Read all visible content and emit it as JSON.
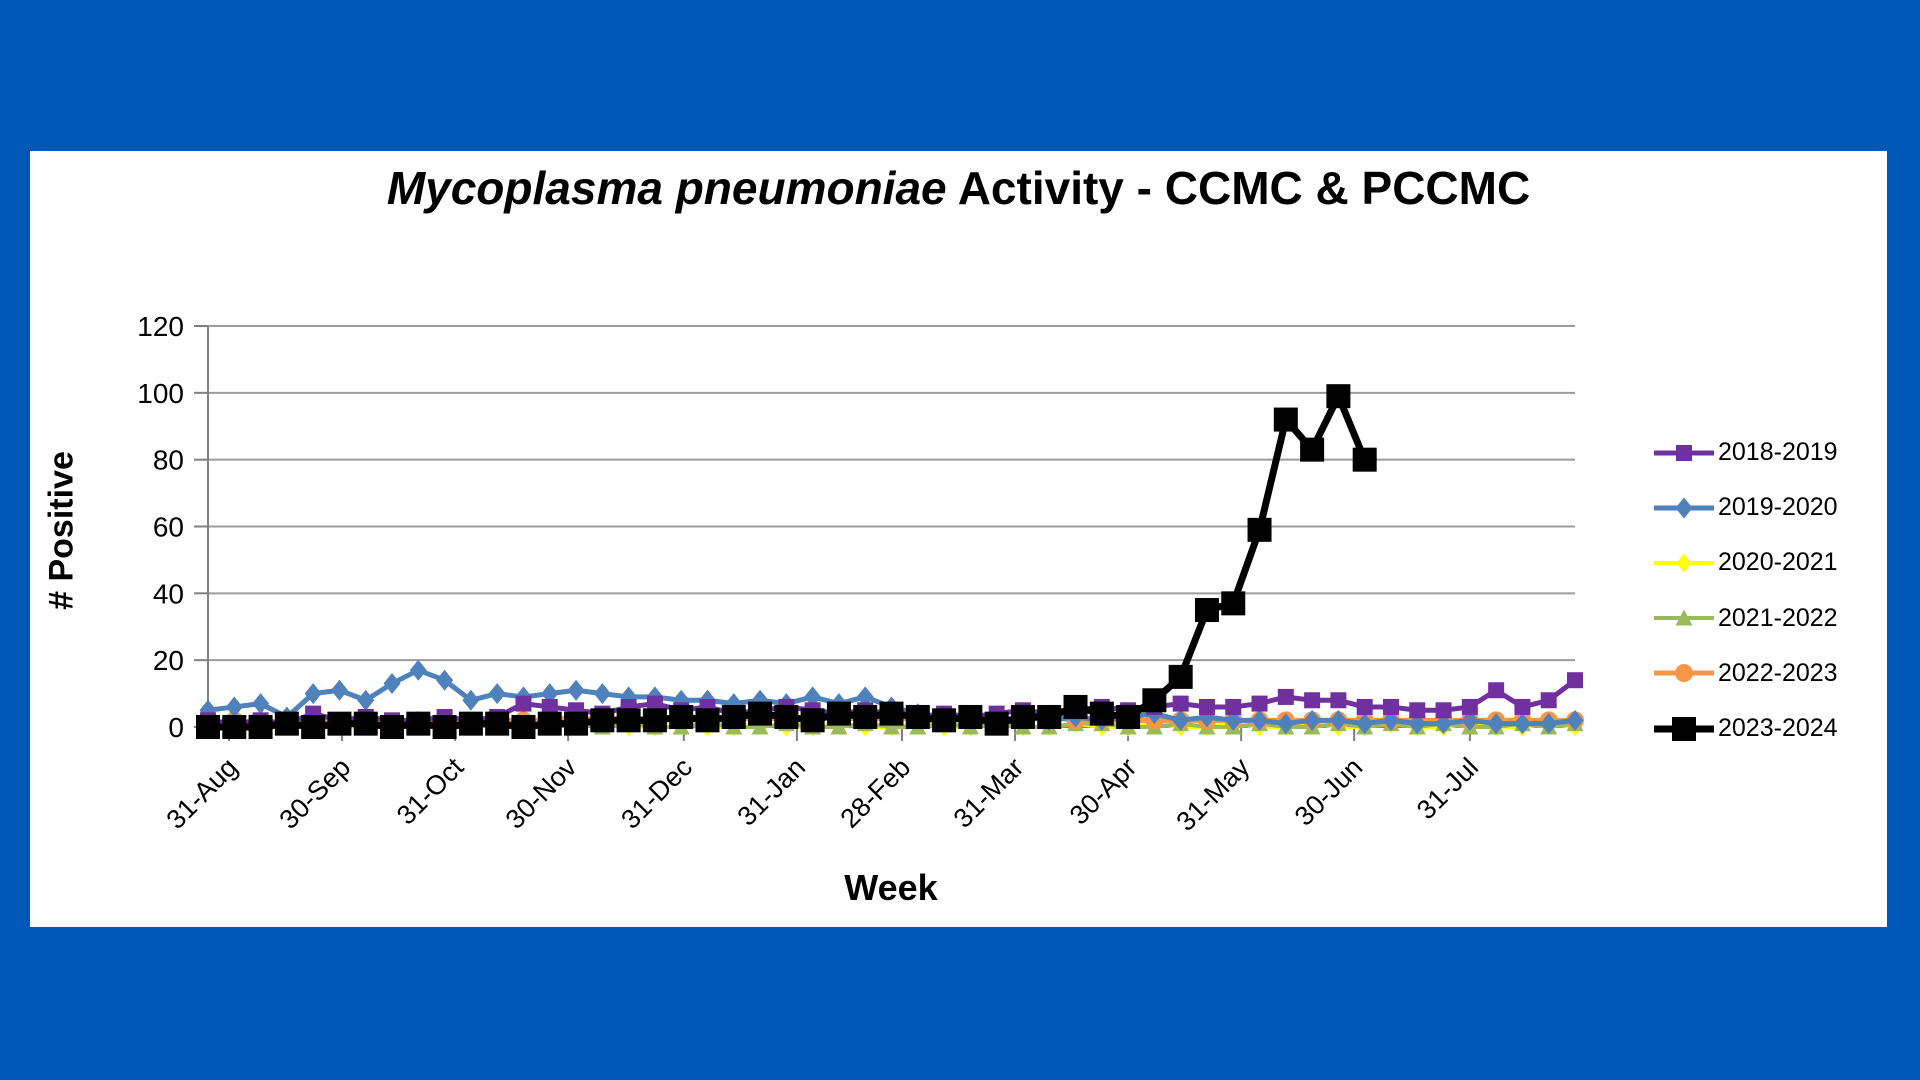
{
  "frame": {
    "background_color": "#0058B8",
    "panel_color": "#FFFFFF"
  },
  "chart_data": {
    "type": "line",
    "title_italic": "Mycoplasma pneumoniae",
    "title_rest": " Activity - CCMC & PCCMC",
    "xlabel": "Week",
    "ylabel": "# Positive",
    "ylim": [
      0,
      120
    ],
    "y_ticks": [
      0,
      20,
      40,
      60,
      80,
      100,
      120
    ],
    "x_tick_labels": [
      "31-Aug",
      "30-Sep",
      "31-Oct",
      "30-Nov",
      "31-Dec",
      "31-Jan",
      "28-Feb",
      "31-Mar",
      "30-Apr",
      "31-May",
      "30-Jun",
      "31-Jul"
    ],
    "x_tick_weeks": [
      0.8,
      5.1,
      9.4,
      13.7,
      18.1,
      22.4,
      26.4,
      30.7,
      35.0,
      39.3,
      43.6,
      48.0
    ],
    "weeks_total": 53,
    "grid": true,
    "legend_position": "right",
    "axis_color": "#808080",
    "gridline_color": "#9C9C9C",
    "series": [
      {
        "name": "2018-2019",
        "color": "#7030A0",
        "marker": "square",
        "values": [
          2,
          1,
          2,
          1,
          4,
          2,
          3,
          2,
          2,
          3,
          2,
          3,
          7,
          6,
          5,
          4,
          6,
          7,
          5,
          6,
          4,
          5,
          6,
          5,
          4,
          5,
          4,
          3,
          4,
          3,
          4,
          5,
          4,
          5,
          6,
          5,
          6,
          7,
          6,
          6,
          7,
          9,
          8,
          8,
          6,
          6,
          5,
          5,
          6,
          11,
          6,
          8,
          14
        ]
      },
      {
        "name": "2019-2020",
        "color": "#4F81BD",
        "marker": "diamond",
        "values": [
          5,
          6,
          7,
          3,
          10,
          11,
          8,
          13,
          17,
          14,
          8,
          10,
          9,
          10,
          11,
          10,
          9,
          9,
          8,
          8,
          7,
          8,
          7,
          9,
          7,
          9,
          6,
          4,
          3,
          3,
          2,
          3,
          2,
          3,
          2,
          3,
          4,
          2,
          3,
          2,
          2,
          1,
          2,
          2,
          1,
          2,
          1,
          1,
          2,
          1,
          1,
          1,
          2
        ]
      },
      {
        "name": "2020-2021",
        "color": "#FFFF00",
        "marker": "diamond",
        "values": [
          0,
          1,
          0,
          0,
          1,
          0,
          0,
          1,
          0,
          0,
          1,
          0,
          0,
          1,
          0,
          1,
          0,
          0,
          1,
          0,
          0,
          1,
          0,
          0,
          1,
          0,
          0,
          1,
          0,
          0,
          1,
          0,
          0,
          1,
          0,
          0,
          1,
          0,
          0,
          1,
          0,
          0,
          1,
          0,
          0,
          1,
          0,
          0,
          1,
          0,
          0,
          1,
          0
        ]
      },
      {
        "name": "2021-2022",
        "color": "#9BBB59",
        "marker": "triangle",
        "values": [
          1,
          0,
          0,
          1,
          0,
          1,
          0,
          0,
          1,
          0,
          0,
          1,
          0,
          0,
          1,
          0,
          1,
          0,
          0,
          1,
          0,
          0,
          1,
          0,
          0,
          1,
          0,
          0,
          1,
          0,
          1,
          0,
          0,
          1,
          1,
          0,
          0,
          1,
          0,
          0,
          1,
          0,
          0,
          1,
          0,
          1,
          0,
          1,
          0,
          0,
          1,
          0,
          1
        ]
      },
      {
        "name": "2022-2023",
        "color": "#F79646",
        "marker": "circle",
        "values": [
          1,
          2,
          1,
          2,
          2,
          1,
          2,
          1,
          2,
          2,
          1,
          2,
          2,
          2,
          3,
          2,
          3,
          2,
          3,
          3,
          2,
          3,
          2,
          3,
          3,
          2,
          3,
          2,
          2,
          3,
          2,
          2,
          3,
          2,
          2,
          2,
          2,
          2,
          2,
          2,
          2,
          2,
          2,
          2,
          2,
          2,
          2,
          2,
          2,
          2,
          2,
          2,
          2
        ]
      },
      {
        "name": "2023-2024",
        "color": "#000000",
        "marker": "square",
        "values": [
          0,
          0,
          0,
          1,
          0,
          1,
          1,
          0,
          1,
          0,
          1,
          1,
          0,
          1,
          1,
          2,
          2,
          2,
          3,
          2,
          3,
          4,
          3,
          2,
          4,
          3,
          4,
          3,
          2,
          3,
          1,
          3,
          3,
          6,
          4,
          3,
          8,
          15,
          35,
          37,
          59,
          92,
          83,
          99,
          80,
          null,
          null,
          null,
          null,
          null,
          null,
          null,
          null
        ]
      }
    ]
  }
}
